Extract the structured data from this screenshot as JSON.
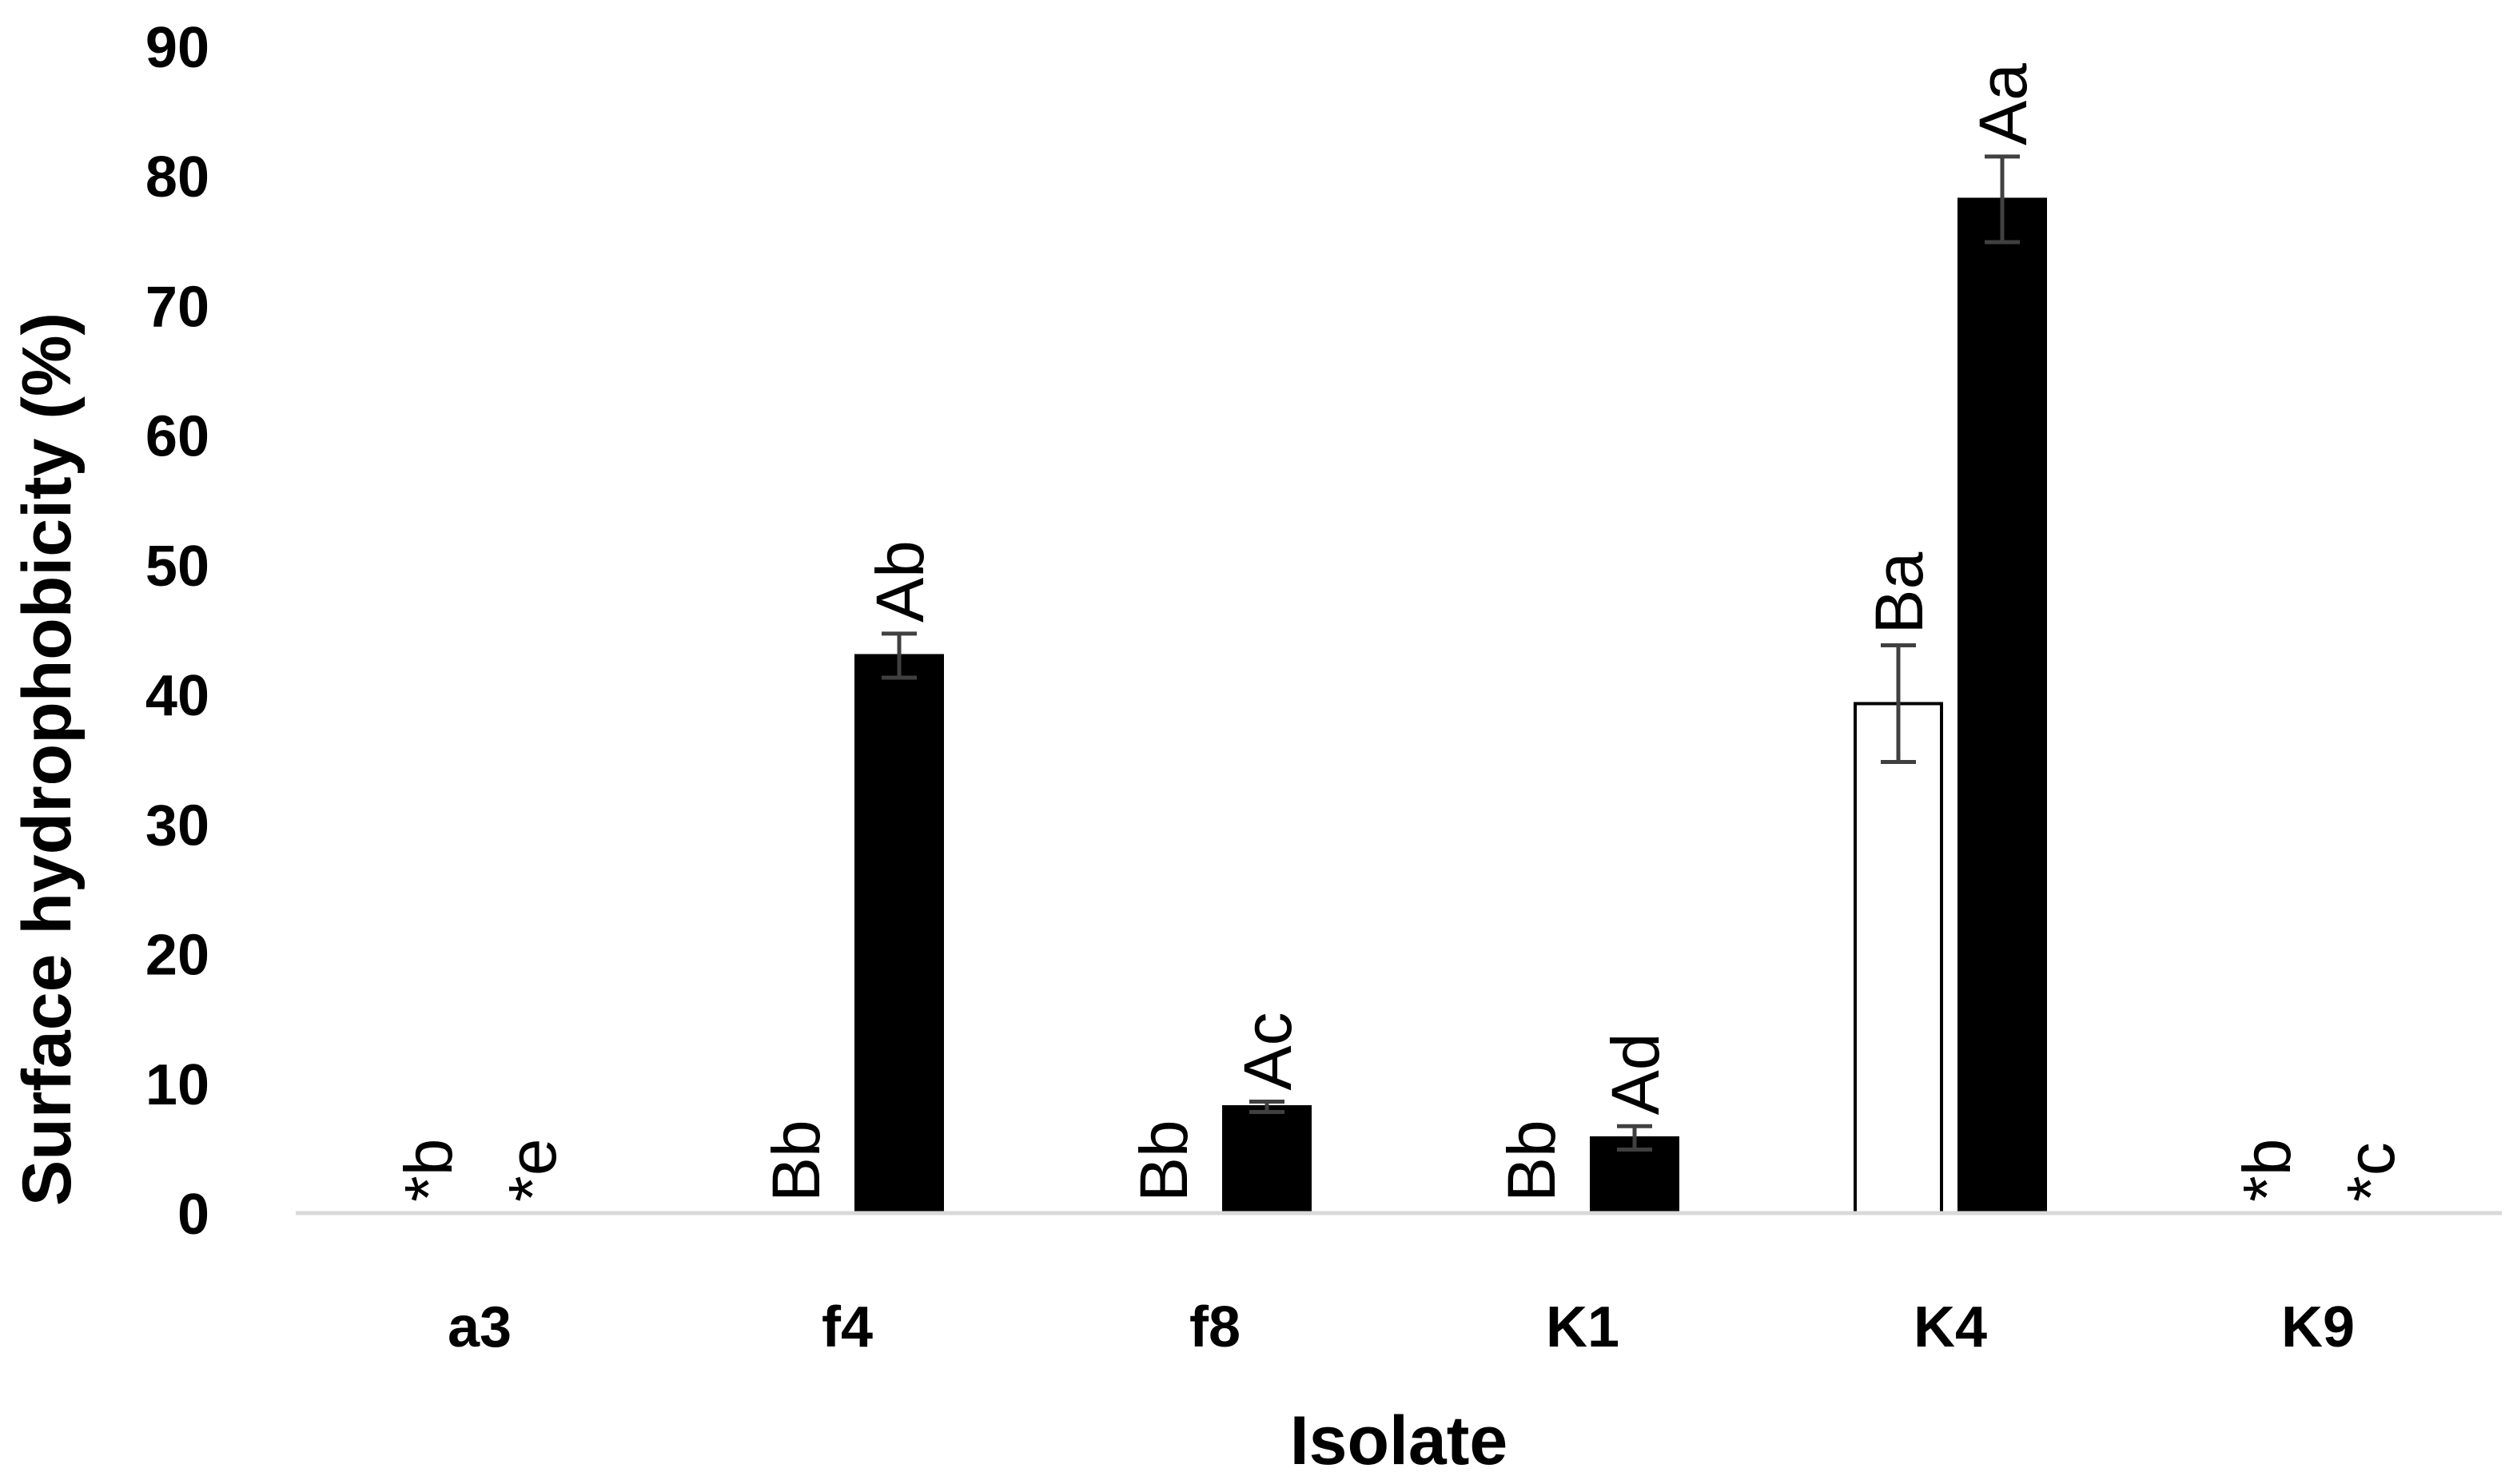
{
  "chart_data": {
    "type": "bar",
    "title": "",
    "xlabel": "Isolate",
    "ylabel": "Surface hydrophobicity (%)",
    "categories": [
      "a3",
      "f4",
      "f8",
      "K1",
      "K4",
      "K9"
    ],
    "ylim": [
      0,
      90
    ],
    "yticks": [
      "0",
      "10",
      "20",
      "30",
      "40",
      "50",
      "60",
      "70",
      "80",
      "90"
    ],
    "grid": false,
    "legend": "none",
    "series": [
      {
        "fill": "#ffffff",
        "stroke": "#000000",
        "values": [
          0,
          0,
          0,
          0,
          39.3,
          0
        ],
        "errors": [
          0,
          0,
          0,
          0,
          4.5,
          0
        ],
        "labels": [
          "*b",
          "Bb",
          "Bb",
          "Bb",
          "Ba",
          "*b"
        ]
      },
      {
        "fill": "#000000",
        "stroke": "#000000",
        "values": [
          0,
          43.0,
          8.2,
          5.8,
          78.2,
          0
        ],
        "errors": [
          0,
          1.7,
          0.4,
          0.9,
          3.3,
          0
        ],
        "labels": [
          "*e",
          "Ab",
          "Ac",
          "Ad",
          "Aa",
          "*c"
        ]
      }
    ],
    "colors": {
      "axis_line": "#d9d9d9",
      "error_bar": "#404040"
    }
  }
}
